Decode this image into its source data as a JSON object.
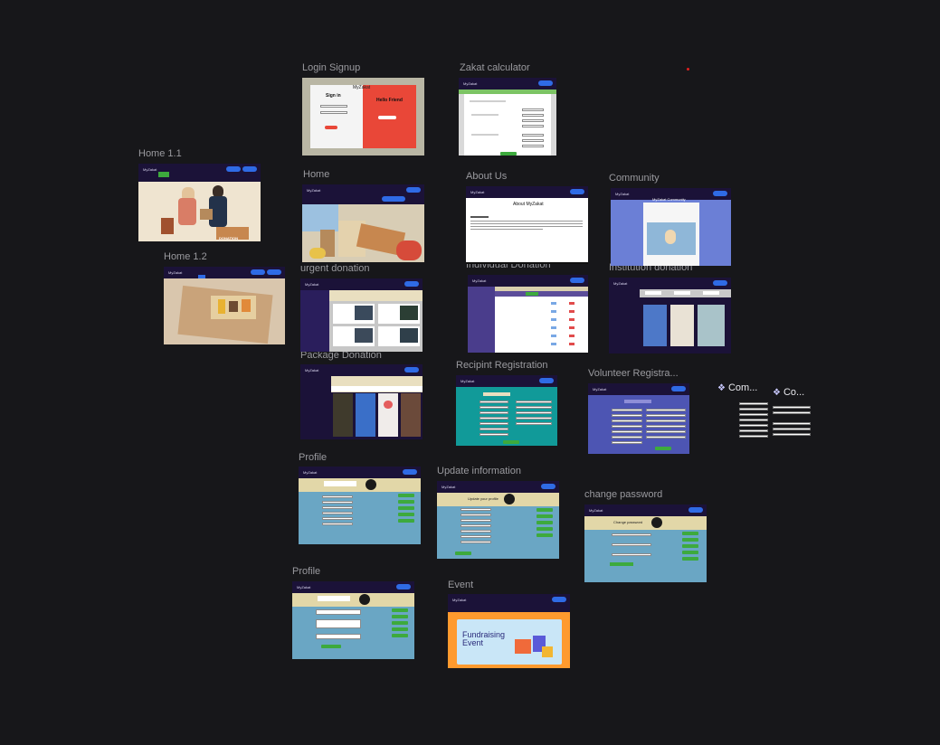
{
  "frames": [
    {
      "label": "Login Signup"
    },
    {
      "label": "Zakat calculator"
    },
    {
      "label": "Home 1.1"
    },
    {
      "label": "Home"
    },
    {
      "label": "About Us"
    },
    {
      "label": "Community"
    },
    {
      "label": "Home 1.2"
    },
    {
      "label": "urgent donation"
    },
    {
      "label": "Individual Donation"
    },
    {
      "label": "Institution donation"
    },
    {
      "label": "Package Donation"
    },
    {
      "label": "Recipint Registration"
    },
    {
      "label": "Volunteer Registra..."
    },
    {
      "label": "Profile"
    },
    {
      "label": "Update information"
    },
    {
      "label": "change password"
    },
    {
      "label": "Profile"
    },
    {
      "label": "Event"
    }
  ],
  "components": [
    {
      "label": "Com..."
    },
    {
      "label": "Co..."
    }
  ],
  "thumb_text": {
    "brand": "MyZakat",
    "sign_in": "Sign in",
    "hello_friend": "Hello Friend",
    "sign_up": "Sign up",
    "about_title": "About MyZakat",
    "community_title": "MyZakat Community",
    "donation_box": "DONATION",
    "fundraising_line1": "Fundraising",
    "fundraising_line2": "Event",
    "change_password_title": "Change password",
    "update_title": "Update your profile"
  },
  "colors": {
    "canvas": "#17171a",
    "nav": "#1b1238",
    "accent_blue": "#2f6be5",
    "green": "#3daa3d",
    "profile_blue": "#6aa6c4",
    "teal": "#119a99",
    "purple": "#4a3d8c"
  }
}
